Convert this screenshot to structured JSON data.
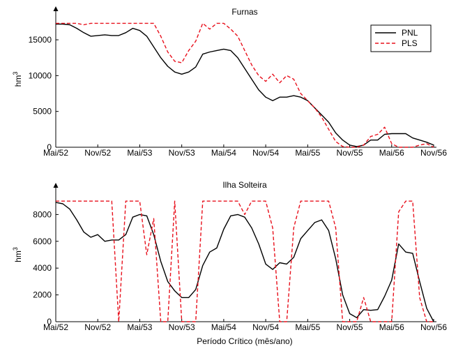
{
  "chart_data": [
    {
      "type": "line",
      "title": "Furnas",
      "xlabel": "",
      "ylabel": "hm",
      "ylabel_sup": "3",
      "x_ticks": [
        "Mai/52",
        "Nov/52",
        "Mai/53",
        "Nov/53",
        "Mai/54",
        "Nov/54",
        "Mai/55",
        "Nov/55",
        "Mai/56",
        "Nov/56"
      ],
      "x_range": [
        0,
        54
      ],
      "ylim": [
        0,
        19000
      ],
      "y_ticks": [
        0,
        5000,
        10000,
        15000
      ],
      "y_tick_labels": [
        "0",
        "5000",
        "10000",
        "15000"
      ],
      "legend": "top-right",
      "series": [
        {
          "name": "PNL",
          "color": "#000000",
          "style": "solid",
          "x": [
            0,
            1,
            2,
            3,
            4,
            5,
            6,
            7,
            8,
            9,
            10,
            11,
            12,
            13,
            14,
            15,
            16,
            17,
            18,
            19,
            20,
            21,
            22,
            23,
            24,
            25,
            26,
            27,
            28,
            29,
            30,
            31,
            32,
            33,
            34,
            35,
            36,
            37,
            38,
            39,
            40,
            41,
            42,
            43,
            44,
            45,
            46,
            47,
            48,
            49,
            50,
            51,
            52,
            53,
            54
          ],
          "values": [
            17200,
            17200,
            17100,
            16600,
            16000,
            15500,
            15600,
            15700,
            15600,
            15600,
            16000,
            16600,
            16300,
            15500,
            14000,
            12500,
            11300,
            10500,
            10200,
            10500,
            11200,
            13000,
            13300,
            13500,
            13700,
            13500,
            12500,
            11000,
            9500,
            8000,
            7000,
            6500,
            7000,
            7000,
            7200,
            7000,
            6500,
            5500,
            4500,
            3500,
            2000,
            1000,
            300,
            100,
            300,
            1000,
            1000,
            1800,
            1900,
            1900,
            1900,
            1300,
            1000,
            700,
            300
          ]
        },
        {
          "name": "PLS",
          "color": "#e8101c",
          "style": "dashed",
          "x": [
            0,
            1,
            2,
            3,
            4,
            5,
            6,
            7,
            8,
            9,
            10,
            11,
            12,
            13,
            14,
            15,
            16,
            17,
            18,
            19,
            20,
            21,
            22,
            23,
            24,
            25,
            26,
            27,
            28,
            29,
            30,
            31,
            32,
            33,
            34,
            35,
            36,
            37,
            38,
            39,
            40,
            41,
            42,
            43,
            44,
            45,
            46,
            47,
            48,
            49,
            50,
            51,
            52,
            53,
            54
          ],
          "values": [
            17300,
            17300,
            17300,
            17300,
            17100,
            17300,
            17300,
            17300,
            17300,
            17300,
            17300,
            17300,
            17300,
            17300,
            17300,
            15500,
            13300,
            12000,
            11800,
            13500,
            14800,
            17300,
            16500,
            17300,
            17300,
            16500,
            15500,
            13500,
            11500,
            10000,
            9200,
            10200,
            9000,
            10000,
            9500,
            7500,
            6500,
            5500,
            4200,
            2500,
            800,
            100,
            0,
            0,
            300,
            1500,
            1800,
            2800,
            500,
            0,
            0,
            0,
            300,
            500,
            0
          ]
        }
      ]
    },
    {
      "type": "line",
      "title": "Ilha Solteira",
      "xlabel": "Período Crítico (mês/ano)",
      "ylabel": "hm",
      "ylabel_sup": "3",
      "x_ticks": [
        "Mai/52",
        "Nov/52",
        "Mai/53",
        "Nov/53",
        "Mai/54",
        "Nov/54",
        "Mai/55",
        "Nov/55",
        "Mai/56",
        "Nov/56"
      ],
      "x_range": [
        0,
        54
      ],
      "ylim": [
        0,
        10000
      ],
      "y_ticks": [
        0,
        2000,
        4000,
        6000,
        8000
      ],
      "y_tick_labels": [
        "0",
        "2000",
        "4000",
        "6000",
        "8000"
      ],
      "series": [
        {
          "name": "PNL",
          "color": "#000000",
          "style": "solid",
          "x": [
            0,
            1,
            2,
            3,
            4,
            5,
            6,
            7,
            8,
            9,
            10,
            11,
            12,
            13,
            14,
            15,
            16,
            17,
            18,
            19,
            20,
            21,
            22,
            23,
            24,
            25,
            26,
            27,
            28,
            29,
            30,
            31,
            32,
            33,
            34,
            35,
            36,
            37,
            38,
            39,
            40,
            41,
            42,
            43,
            44,
            45,
            46,
            47,
            48,
            49,
            50,
            51,
            52,
            53,
            54
          ],
          "values": [
            8900,
            8800,
            8400,
            7600,
            6700,
            6300,
            6500,
            6000,
            6100,
            6100,
            6500,
            7800,
            8000,
            7900,
            6500,
            4500,
            3000,
            2300,
            1800,
            1800,
            2400,
            4200,
            5200,
            5500,
            6900,
            7900,
            8000,
            7800,
            7000,
            5800,
            4300,
            3900,
            4400,
            4300,
            4800,
            6200,
            6800,
            7400,
            7600,
            6800,
            4700,
            2000,
            600,
            300,
            900,
            850,
            900,
            1900,
            3100,
            5800,
            5200,
            5100,
            3000,
            1000,
            0
          ]
        },
        {
          "name": "PLS",
          "color": "#e8101c",
          "style": "dashed",
          "x": [
            0,
            1,
            2,
            3,
            4,
            5,
            6,
            7,
            8,
            9,
            10,
            11,
            12,
            13,
            14,
            15,
            16,
            17,
            18,
            19,
            20,
            21,
            22,
            23,
            24,
            25,
            26,
            27,
            28,
            29,
            30,
            31,
            32,
            33,
            34,
            35,
            36,
            37,
            38,
            39,
            40,
            41,
            42,
            43,
            44,
            45,
            46,
            47,
            48,
            49,
            50,
            51,
            52,
            53,
            54
          ],
          "values": [
            9000,
            9000,
            9000,
            9000,
            9000,
            9000,
            9000,
            9000,
            9000,
            0,
            9000,
            9000,
            9000,
            5000,
            7700,
            0,
            0,
            9000,
            0,
            0,
            0,
            9000,
            9000,
            9000,
            9000,
            9000,
            9000,
            8000,
            9000,
            9000,
            9000,
            7000,
            0,
            0,
            7000,
            9000,
            9000,
            9000,
            9000,
            9000,
            7000,
            0,
            0,
            0,
            1800,
            0,
            0,
            0,
            0,
            8200,
            9000,
            9000,
            1800,
            0,
            0
          ]
        }
      ]
    }
  ]
}
